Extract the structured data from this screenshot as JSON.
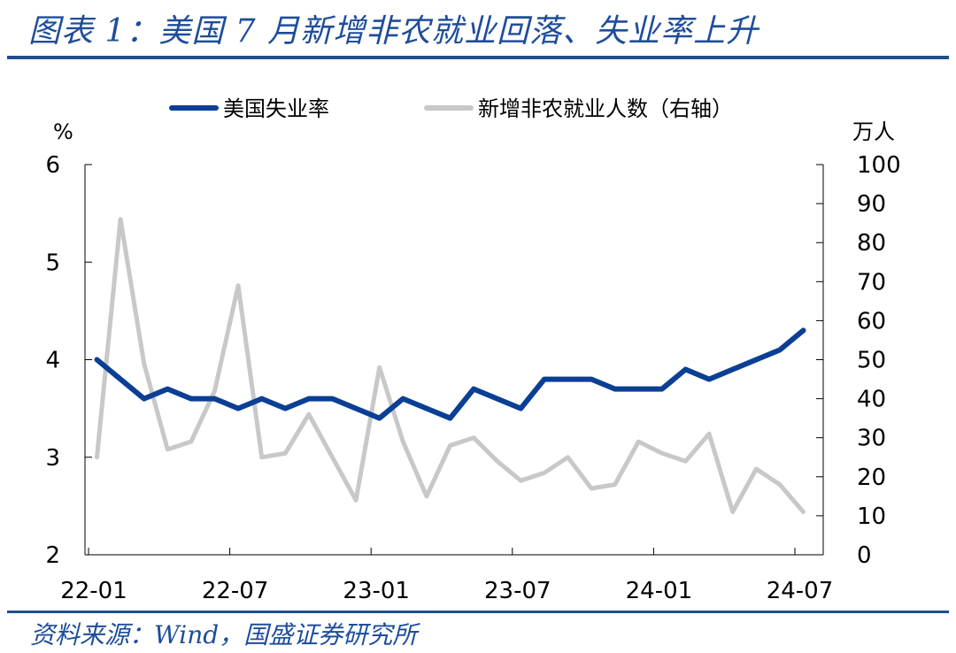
{
  "header": {
    "title": "图表 1：美国 7 月新增非农就业回落、失业率上升"
  },
  "footer": {
    "source": "资料来源：Wind，国盛证券研究所"
  },
  "colors": {
    "accent": "#1e4d9b",
    "unemployment_line": "#0a3f95",
    "payrolls_line": "#c8c8c8"
  },
  "chart_data": {
    "type": "line",
    "x": [
      "22-01",
      "22-02",
      "22-03",
      "22-04",
      "22-05",
      "22-06",
      "22-07",
      "22-08",
      "22-09",
      "22-10",
      "22-11",
      "22-12",
      "23-01",
      "23-02",
      "23-03",
      "23-04",
      "23-05",
      "23-06",
      "23-07",
      "23-08",
      "23-09",
      "23-10",
      "23-11",
      "23-12",
      "24-01",
      "24-02",
      "24-03",
      "24-04",
      "24-05",
      "24-06",
      "24-07"
    ],
    "x_tick_labels": [
      "22-01",
      "22-07",
      "23-01",
      "23-07",
      "24-01",
      "24-07"
    ],
    "series": [
      {
        "name": "美国失业率",
        "axis": "left",
        "color": "#0a3f95",
        "values": [
          4.0,
          3.8,
          3.6,
          3.7,
          3.6,
          3.6,
          3.5,
          3.6,
          3.5,
          3.6,
          3.6,
          3.5,
          3.4,
          3.6,
          3.5,
          3.4,
          3.7,
          3.6,
          3.5,
          3.8,
          3.8,
          3.8,
          3.7,
          3.7,
          3.7,
          3.9,
          3.8,
          3.9,
          4.0,
          4.1,
          4.3
        ]
      },
      {
        "name": "新增非农就业人数（右轴）",
        "axis": "right",
        "color": "#c8c8c8",
        "values": [
          25,
          86,
          49,
          27,
          29,
          42,
          69,
          25,
          26,
          36,
          25,
          14,
          48,
          29,
          15,
          28,
          30,
          24,
          19,
          21,
          25,
          17,
          18,
          29,
          26,
          24,
          31,
          11,
          22,
          18,
          11
        ]
      }
    ],
    "y_left": {
      "label": "%",
      "lim": [
        2,
        6
      ],
      "ticks": [
        2,
        3,
        4,
        5,
        6
      ]
    },
    "y_right": {
      "label": "万人",
      "lim": [
        0,
        100
      ],
      "ticks": [
        0,
        10,
        20,
        30,
        40,
        50,
        60,
        70,
        80,
        90,
        100
      ]
    },
    "legend_position": "top-center",
    "grid": false
  }
}
